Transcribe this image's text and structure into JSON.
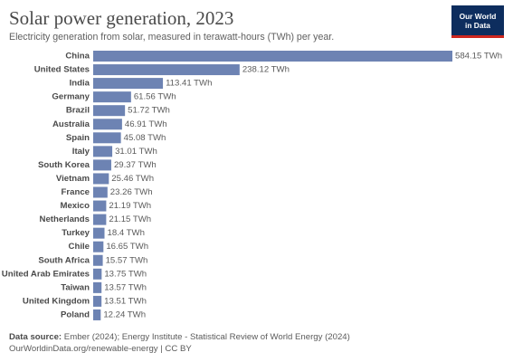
{
  "title": "Solar power generation, 2023",
  "subtitle": "Electricity generation from solar, measured in terawatt-hours (TWh) per year.",
  "logo": {
    "line1": "Our World",
    "line2": "in Data"
  },
  "footer": {
    "source_label": "Data source:",
    "source_text": "Ember (2024); Energy Institute - Statistical Review of World Energy (2024)",
    "url_text": "OurWorldinData.org/renewable-energy | CC BY"
  },
  "colors": {
    "bar": "#6d83b3",
    "label": "#4a4a4a",
    "value": "#5b5b5b",
    "logo_bg": "#0d2d5e",
    "logo_accent": "#ce261e"
  },
  "chart_data": {
    "type": "bar",
    "orientation": "horizontal",
    "unit": "TWh",
    "categories": [
      "China",
      "United States",
      "India",
      "Germany",
      "Brazil",
      "Australia",
      "Spain",
      "Italy",
      "South Korea",
      "Vietnam",
      "France",
      "Mexico",
      "Netherlands",
      "Turkey",
      "Chile",
      "South Africa",
      "United Arab Emirates",
      "Taiwan",
      "United Kingdom",
      "Poland"
    ],
    "values": [
      584.15,
      238.12,
      113.41,
      61.56,
      51.72,
      46.91,
      45.08,
      31.01,
      29.37,
      25.46,
      23.26,
      21.19,
      21.15,
      18.4,
      16.65,
      15.57,
      13.75,
      13.57,
      13.51,
      12.24
    ],
    "value_labels": [
      "584.15 TWh",
      "238.12 TWh",
      "113.41 TWh",
      "61.56 TWh",
      "51.72 TWh",
      "46.91 TWh",
      "45.08 TWh",
      "31.01 TWh",
      "29.37 TWh",
      "25.46 TWh",
      "23.26 TWh",
      "21.19 TWh",
      "21.15 TWh",
      "18.4 TWh",
      "16.65 TWh",
      "15.57 TWh",
      "13.75 TWh",
      "13.57 TWh",
      "13.51 TWh",
      "12.24 TWh"
    ],
    "xlim": [
      0,
      584.15
    ],
    "grid": false,
    "legend": "none"
  }
}
